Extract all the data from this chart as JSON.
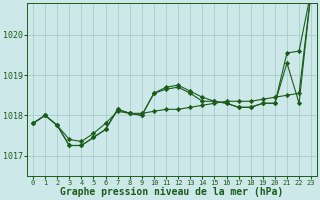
{
  "background_color": "#cce8e8",
  "grid_color": "#aacccc",
  "line_color": "#1a5c1a",
  "marker_color": "#1a5c1a",
  "xlabel": "Graphe pression niveau de la mer (hPa)",
  "xlabel_fontsize": 7,
  "ytick_labels": [
    1017,
    1018,
    1019,
    1020
  ],
  "xtick_labels": [
    0,
    1,
    2,
    3,
    4,
    5,
    6,
    7,
    8,
    9,
    10,
    11,
    12,
    13,
    14,
    15,
    16,
    17,
    18,
    19,
    20,
    21,
    22,
    23
  ],
  "xlim": [
    -0.5,
    23.5
  ],
  "ylim": [
    1016.5,
    1020.8
  ],
  "series": [
    [
      1017.8,
      1018.0,
      1017.75,
      1017.4,
      1017.35,
      1017.55,
      1017.8,
      1018.1,
      1018.05,
      1018.05,
      1018.1,
      1018.15,
      1018.15,
      1018.2,
      1018.25,
      1018.3,
      1018.35,
      1018.35,
      1018.35,
      1018.4,
      1018.45,
      1018.5,
      1018.55,
      1021.1
    ],
    [
      1017.8,
      1018.0,
      1017.75,
      1017.25,
      1017.25,
      1017.45,
      1017.65,
      1018.15,
      1018.05,
      1018.0,
      1018.55,
      1018.7,
      1018.75,
      1018.6,
      1018.45,
      1018.35,
      1018.3,
      1018.2,
      1018.2,
      1018.3,
      1018.3,
      1019.55,
      1019.6,
      1021.1
    ],
    [
      1017.8,
      1018.0,
      1017.75,
      1017.25,
      1017.25,
      1017.45,
      1017.65,
      1018.15,
      1018.05,
      1018.0,
      1018.55,
      1018.65,
      1018.7,
      1018.55,
      1018.35,
      1018.35,
      1018.3,
      1018.2,
      1018.2,
      1018.3,
      1018.3,
      1019.3,
      1018.3,
      1021.1
    ]
  ]
}
